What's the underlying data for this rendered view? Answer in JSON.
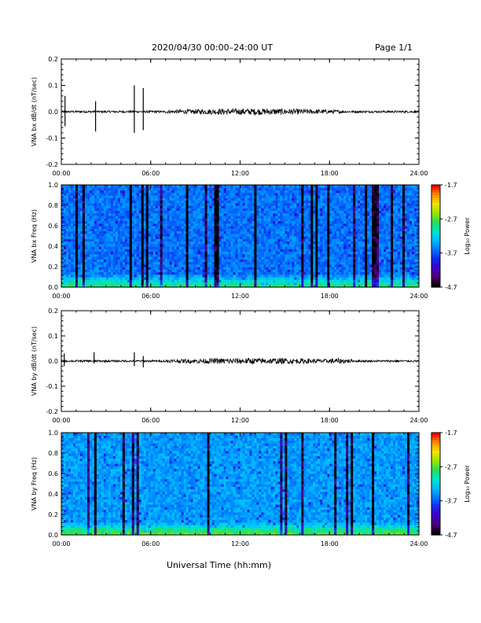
{
  "header": {
    "title": "2020/04/30  00:00–24:00 UT",
    "page": "Page 1/1"
  },
  "footer": {
    "xlabel": "Universal Time (hh:mm)"
  },
  "colors": {
    "line": "#000000",
    "frame": "#000000"
  },
  "chart_data": [
    {
      "type": "line",
      "ylabel": "VNA bx dB/dt (nT/sec)",
      "ylim": [
        -0.2,
        0.2
      ],
      "yticks": [
        "0.2",
        "0.1",
        "0.0",
        "-0.1",
        "-0.2"
      ],
      "xticks": [
        "00:00",
        "06:00",
        "12:00",
        "18:00",
        "24:00"
      ],
      "xlim": [
        0,
        24
      ],
      "spikes": [
        {
          "x": 0.25,
          "y": [
            -0.055,
            0.06
          ]
        },
        {
          "x": 2.3,
          "y": [
            -0.075,
            0.04
          ]
        },
        {
          "x": 4.9,
          "y": [
            -0.08,
            0.1
          ]
        },
        {
          "x": 5.5,
          "y": [
            -0.07,
            0.09
          ]
        }
      ]
    },
    {
      "type": "heatmap",
      "ylabel": "VNA bx Freq (Hz)",
      "ylim": [
        0,
        1.0
      ],
      "yticks": [
        "1.0",
        "0.8",
        "0.6",
        "0.4",
        "0.2",
        "0.0"
      ],
      "xticks": [
        "00:00",
        "06:00",
        "12:00",
        "18:00",
        "24:00"
      ],
      "colorbar": {
        "label": "Log₁₀ Power",
        "ticks": [
          "-1.7",
          "-2.7",
          "-3.7",
          "-4.7"
        ],
        "range": [
          -4.7,
          -1.7
        ]
      }
    },
    {
      "type": "line",
      "ylabel": "VNA by dB/dt (nT/sec)",
      "ylim": [
        -0.2,
        0.2
      ],
      "yticks": [
        "0.2",
        "0.1",
        "0.0",
        "-0.1",
        "-0.2"
      ],
      "xticks": [
        "00:00",
        "06:00",
        "12:00",
        "18:00",
        "24:00"
      ],
      "xlim": [
        0,
        24
      ],
      "spikes": [
        {
          "x": 0.2,
          "y": [
            -0.02,
            0.03
          ]
        },
        {
          "x": 2.2,
          "y": [
            -0.01,
            0.035
          ]
        },
        {
          "x": 4.9,
          "y": [
            -0.02,
            0.035
          ]
        },
        {
          "x": 5.5,
          "y": [
            -0.025,
            0.02
          ]
        }
      ]
    },
    {
      "type": "heatmap",
      "ylabel": "VNA by Freq (Hz)",
      "ylim": [
        0,
        1.0
      ],
      "yticks": [
        "1.0",
        "0.8",
        "0.6",
        "0.4",
        "0.2",
        "0.0"
      ],
      "xticks": [
        "00:00",
        "06:00",
        "12:00",
        "18:00",
        "24:00"
      ],
      "colorbar": {
        "label": "Log₁₀ Power",
        "ticks": [
          "-1.7",
          "-2.7",
          "-3.7",
          "-4.7"
        ],
        "range": [
          -4.7,
          -1.7
        ]
      }
    }
  ]
}
